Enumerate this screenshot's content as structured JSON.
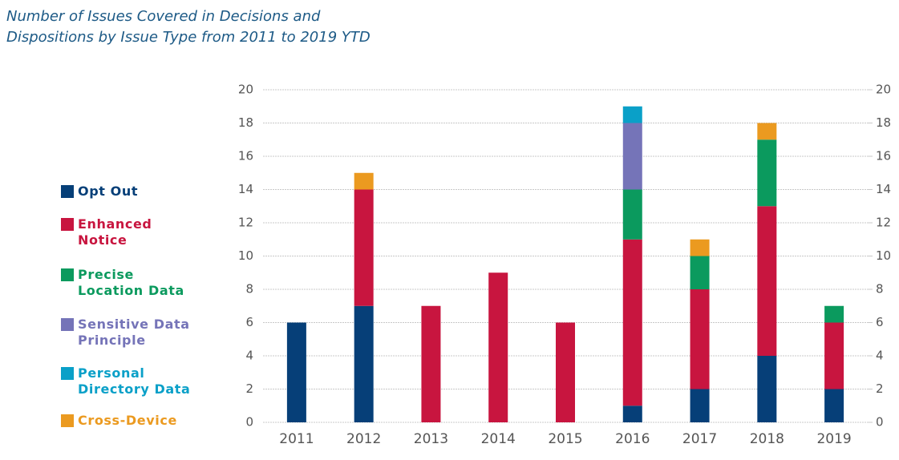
{
  "chart_data": {
    "type": "bar",
    "stacked": true,
    "title": "Number of Issues Covered in Decisions and Dispositions by Issue Type from 2011 to 2019 YTD",
    "categories": [
      "2011",
      "2012",
      "2013",
      "2014",
      "2015",
      "2016",
      "2017",
      "2018",
      "2019"
    ],
    "series": [
      {
        "name": "Opt Out",
        "color": "#063f78",
        "values": [
          6,
          7,
          0,
          0,
          0,
          1,
          2,
          4,
          2
        ]
      },
      {
        "name": "Enhanced Notice",
        "color": "#c8153f",
        "values": [
          0,
          7,
          7,
          9,
          6,
          10,
          6,
          9,
          4
        ]
      },
      {
        "name": "Precise Location Data",
        "color": "#0b9a5e",
        "values": [
          0,
          0,
          0,
          0,
          0,
          3,
          2,
          4,
          1
        ]
      },
      {
        "name": "Sensitive Data Principle",
        "color": "#7574b8",
        "values": [
          0,
          0,
          0,
          0,
          0,
          4,
          0,
          0,
          0
        ]
      },
      {
        "name": "Personal Directory Data",
        "color": "#0aa0c8",
        "values": [
          0,
          0,
          0,
          0,
          0,
          1,
          0,
          0,
          0
        ]
      },
      {
        "name": "Cross-Device",
        "color": "#eb9a20",
        "values": [
          0,
          1,
          0,
          0,
          0,
          0,
          1,
          1,
          0
        ]
      }
    ],
    "ylim": [
      0,
      20
    ],
    "yticks": [
      0,
      2,
      4,
      6,
      8,
      10,
      12,
      14,
      16,
      18,
      20
    ],
    "y2lim": [
      0,
      20
    ],
    "y2ticks": [
      0,
      2,
      4,
      6,
      8,
      10,
      12,
      14,
      16,
      18,
      20
    ],
    "grid": true,
    "legend": "left"
  }
}
